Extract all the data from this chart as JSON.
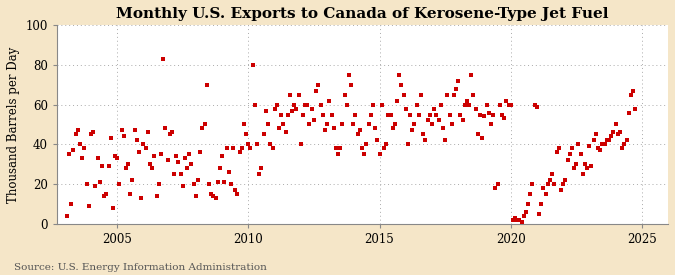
{
  "title": "Monthly U.S. Exports to Canada of Kerosene-Type Jet Fuel",
  "ylabel": "Thousand Barrels per Day",
  "source": "Source: U.S. Energy Information Administration",
  "outer_bg": "#f5e6c8",
  "plot_bg": "#ffffff",
  "marker_color": "#cc0000",
  "marker": "s",
  "marker_size": 3.5,
  "ylim": [
    0,
    100
  ],
  "yticks": [
    0,
    20,
    40,
    60,
    80,
    100
  ],
  "xlim_start": 2002.7,
  "xlim_end": 2026.0,
  "xticks": [
    2005,
    2010,
    2015,
    2020,
    2025
  ],
  "grid_color": "#aaaaaa",
  "title_fontsize": 11,
  "label_fontsize": 8.5,
  "source_fontsize": 7.5,
  "dates": [
    2003.08,
    2003.17,
    2003.25,
    2003.33,
    2003.42,
    2003.5,
    2003.58,
    2003.67,
    2003.75,
    2003.83,
    2003.92,
    2004.0,
    2004.08,
    2004.17,
    2004.25,
    2004.33,
    2004.42,
    2004.5,
    2004.58,
    2004.67,
    2004.75,
    2004.83,
    2004.92,
    2005.0,
    2005.08,
    2005.17,
    2005.25,
    2005.33,
    2005.42,
    2005.5,
    2005.58,
    2005.67,
    2005.75,
    2005.83,
    2005.92,
    2006.0,
    2006.08,
    2006.17,
    2006.25,
    2006.33,
    2006.42,
    2006.5,
    2006.58,
    2006.67,
    2006.75,
    2006.83,
    2006.92,
    2007.0,
    2007.08,
    2007.17,
    2007.25,
    2007.33,
    2007.42,
    2007.5,
    2007.58,
    2007.67,
    2007.75,
    2007.83,
    2007.92,
    2008.0,
    2008.08,
    2008.17,
    2008.25,
    2008.33,
    2008.42,
    2008.5,
    2008.58,
    2008.67,
    2008.75,
    2008.83,
    2008.92,
    2009.0,
    2009.08,
    2009.17,
    2009.25,
    2009.33,
    2009.42,
    2009.5,
    2009.58,
    2009.67,
    2009.75,
    2009.83,
    2009.92,
    2010.0,
    2010.08,
    2010.17,
    2010.25,
    2010.33,
    2010.42,
    2010.5,
    2010.58,
    2010.67,
    2010.75,
    2010.83,
    2010.92,
    2011.0,
    2011.08,
    2011.17,
    2011.25,
    2011.33,
    2011.42,
    2011.5,
    2011.58,
    2011.67,
    2011.75,
    2011.83,
    2011.92,
    2012.0,
    2012.08,
    2012.17,
    2012.25,
    2012.33,
    2012.42,
    2012.5,
    2012.58,
    2012.67,
    2012.75,
    2012.83,
    2012.92,
    2013.0,
    2013.08,
    2013.17,
    2013.25,
    2013.33,
    2013.42,
    2013.5,
    2013.58,
    2013.67,
    2013.75,
    2013.83,
    2013.92,
    2014.0,
    2014.08,
    2014.17,
    2014.25,
    2014.33,
    2014.42,
    2014.5,
    2014.58,
    2014.67,
    2014.75,
    2014.83,
    2014.92,
    2015.0,
    2015.08,
    2015.17,
    2015.25,
    2015.33,
    2015.42,
    2015.5,
    2015.58,
    2015.67,
    2015.75,
    2015.83,
    2015.92,
    2016.0,
    2016.08,
    2016.17,
    2016.25,
    2016.33,
    2016.42,
    2016.5,
    2016.58,
    2016.67,
    2016.75,
    2016.83,
    2016.92,
    2017.0,
    2017.08,
    2017.17,
    2017.25,
    2017.33,
    2017.42,
    2017.5,
    2017.58,
    2017.67,
    2017.75,
    2017.83,
    2017.92,
    2018.0,
    2018.08,
    2018.17,
    2018.25,
    2018.33,
    2018.42,
    2018.5,
    2018.58,
    2018.67,
    2018.75,
    2018.83,
    2018.92,
    2019.0,
    2019.08,
    2019.17,
    2019.25,
    2019.33,
    2019.42,
    2019.5,
    2019.58,
    2019.67,
    2019.75,
    2019.83,
    2019.92,
    2020.0,
    2020.08,
    2020.17,
    2020.25,
    2020.33,
    2020.42,
    2020.5,
    2020.58,
    2020.67,
    2020.75,
    2020.83,
    2020.92,
    2021.0,
    2021.08,
    2021.17,
    2021.25,
    2021.33,
    2021.42,
    2021.5,
    2021.58,
    2021.67,
    2021.75,
    2021.83,
    2021.92,
    2022.0,
    2022.08,
    2022.17,
    2022.25,
    2022.33,
    2022.42,
    2022.5,
    2022.58,
    2022.67,
    2022.75,
    2022.83,
    2022.92,
    2023.0,
    2023.08,
    2023.17,
    2023.25,
    2023.33,
    2023.42,
    2023.5,
    2023.58,
    2023.67,
    2023.75,
    2023.83,
    2023.92,
    2024.0,
    2024.08,
    2024.17,
    2024.25,
    2024.33,
    2024.42,
    2024.5,
    2024.58,
    2024.67,
    2024.75
  ],
  "values": [
    4,
    35,
    10,
    37,
    45,
    47,
    40,
    33,
    38,
    20,
    9,
    45,
    46,
    19,
    33,
    21,
    29,
    14,
    15,
    29,
    43,
    8,
    34,
    33,
    20,
    47,
    44,
    28,
    30,
    15,
    22,
    47,
    42,
    36,
    13,
    40,
    38,
    46,
    30,
    28,
    34,
    14,
    20,
    35,
    83,
    48,
    32,
    45,
    46,
    25,
    34,
    31,
    25,
    19,
    33,
    28,
    35,
    30,
    20,
    14,
    22,
    36,
    48,
    50,
    70,
    20,
    15,
    14,
    13,
    21,
    28,
    34,
    21,
    38,
    26,
    20,
    38,
    17,
    15,
    36,
    38,
    50,
    45,
    40,
    38,
    80,
    60,
    40,
    25,
    28,
    45,
    57,
    50,
    40,
    38,
    58,
    60,
    48,
    55,
    50,
    46,
    55,
    65,
    57,
    60,
    58,
    65,
    40,
    55,
    60,
    60,
    50,
    58,
    52,
    67,
    70,
    60,
    55,
    47,
    50,
    62,
    55,
    48,
    38,
    35,
    38,
    50,
    65,
    60,
    75,
    70,
    50,
    55,
    45,
    47,
    38,
    35,
    40,
    50,
    55,
    60,
    48,
    42,
    35,
    60,
    38,
    40,
    55,
    55,
    48,
    50,
    62,
    75,
    70,
    65,
    58,
    40,
    55,
    47,
    50,
    60,
    55,
    65,
    45,
    42,
    52,
    55,
    50,
    58,
    55,
    52,
    60,
    48,
    42,
    65,
    55,
    50,
    65,
    68,
    72,
    55,
    52,
    60,
    62,
    60,
    75,
    65,
    58,
    45,
    55,
    43,
    54,
    60,
    56,
    50,
    55,
    18,
    20,
    60,
    55,
    53,
    62,
    60,
    60,
    2,
    3,
    2,
    2,
    1,
    4,
    6,
    10,
    15,
    20,
    60,
    59,
    5,
    10,
    18,
    15,
    20,
    22,
    25,
    20,
    36,
    38,
    17,
    20,
    22,
    32,
    35,
    38,
    28,
    30,
    40,
    35,
    25,
    30,
    28,
    39,
    29,
    42,
    45,
    38,
    37,
    40,
    40,
    42,
    42,
    44,
    46,
    50,
    45,
    46,
    38,
    40,
    42,
    56,
    65,
    67,
    58
  ]
}
